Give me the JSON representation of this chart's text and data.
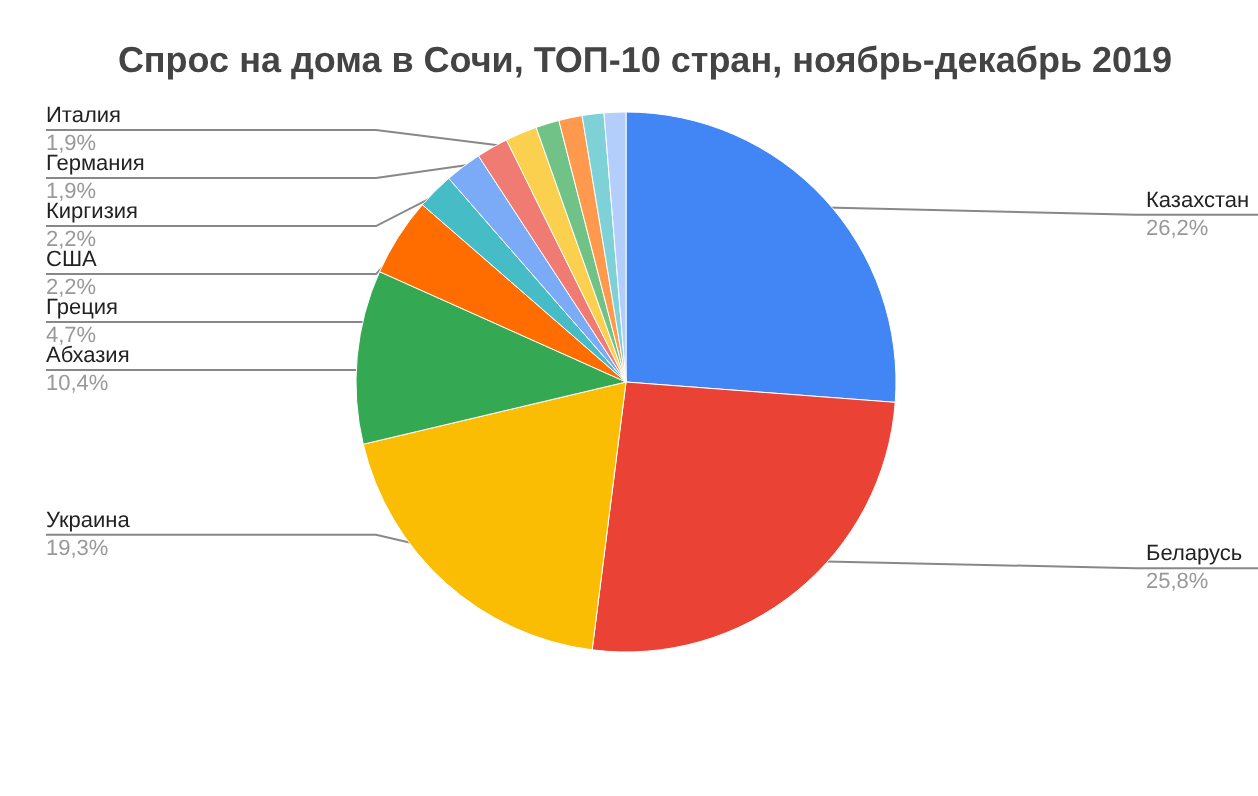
{
  "chart_data": {
    "type": "pie",
    "title": "Спрос на дома в Сочи, ТОП-10 стран, ноябрь-декабрь 2019",
    "categories": [
      "Казахстан",
      "Беларусь",
      "Украина",
      "Абхазия",
      "Греция",
      "США",
      "Киргизия",
      "Германия",
      "Италия",
      null,
      null,
      null,
      null
    ],
    "values": [
      26.2,
      25.8,
      19.3,
      10.4,
      4.7,
      2.2,
      2.2,
      1.9,
      1.9,
      1.4,
      1.4,
      1.3,
      1.3
    ],
    "value_labels": [
      "26,2%",
      "25,8%",
      "19,3%",
      "10,4%",
      "4,7%",
      "2,2%",
      "2,2%",
      "1,9%",
      "1,9%",
      null,
      null,
      null,
      null
    ],
    "colors": [
      "#4285f4",
      "#ea4335",
      "#fbbc04",
      "#34a853",
      "#ff6d01",
      "#46bdc6",
      "#7baaf7",
      "#f07b72",
      "#fcd04f",
      "#71c287",
      "#ff994d",
      "#7ed1d7",
      "#b3cefb"
    ]
  }
}
